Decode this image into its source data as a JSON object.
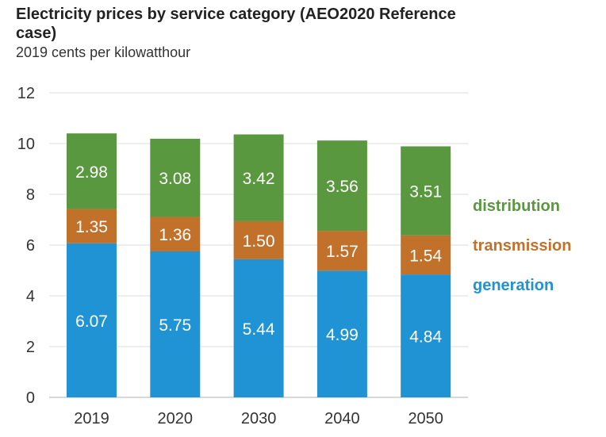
{
  "chart_data": {
    "type": "bar",
    "stacked": true,
    "title": "Electricity prices by service category (AEO2020 Reference case)",
    "subtitle": "2019 cents per kilowatthour",
    "xlabel": "",
    "ylabel": "",
    "ylim": [
      0,
      12
    ],
    "yticks": [
      0,
      2,
      4,
      6,
      8,
      10,
      12
    ],
    "grid": true,
    "legend_position": "right",
    "categories": [
      "2019",
      "2020",
      "2030",
      "2040",
      "2050"
    ],
    "series": [
      {
        "name": "generation",
        "color": "#1f93d4",
        "values": [
          6.07,
          5.75,
          5.44,
          4.99,
          4.84
        ]
      },
      {
        "name": "transmission",
        "color": "#c2712b",
        "values": [
          1.35,
          1.36,
          1.5,
          1.57,
          1.54
        ]
      },
      {
        "name": "distribution",
        "color": "#5a983f",
        "values": [
          2.98,
          3.08,
          3.42,
          3.56,
          3.51
        ]
      }
    ],
    "value_labels": [
      [
        "6.07",
        "5.75",
        "5.44",
        "4.99",
        "4.84"
      ],
      [
        "1.35",
        "1.36",
        "1.50",
        "1.57",
        "1.54"
      ],
      [
        "2.98",
        "3.08",
        "3.42",
        "3.56",
        "3.51"
      ]
    ]
  }
}
